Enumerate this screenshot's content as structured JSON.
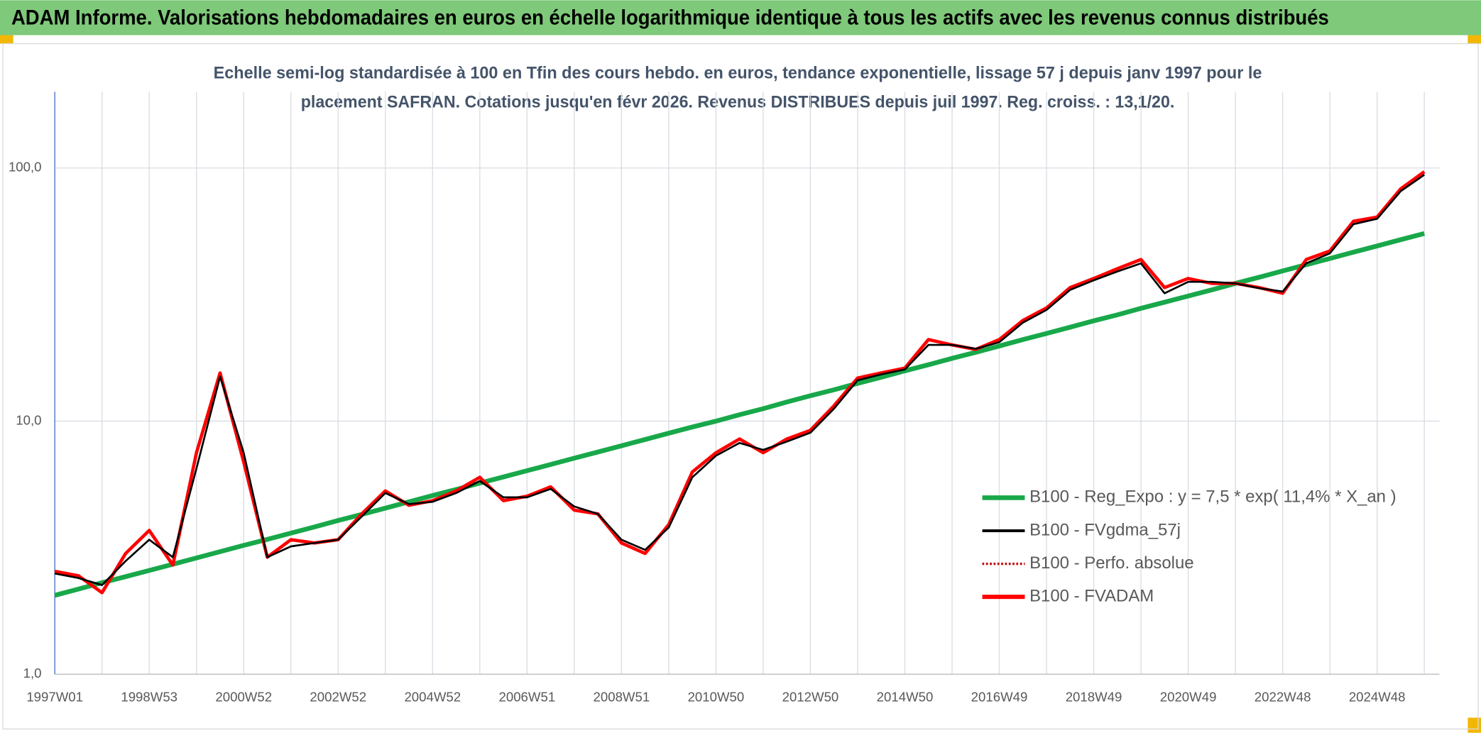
{
  "chart_data": {
    "type": "line",
    "title": "ADAM Informe. Valorisations hebdomadaires en euros en échelle logarithmique identique à tous les actifs avec les revenus connus distribués",
    "subtitle": [
      "Echelle semi-log standardisée à 100 en Tfin des cours hebdo. en euros, tendance exponentielle, lissage 57 j depuis janv 1997 pour le",
      "placement SAFRAN. Cotations jusqu'en févr 2026. Revenus DISTRIBUES depuis juil 1997. Reg. croiss. : 13,1/20."
    ],
    "categories": [
      "1997W01",
      null,
      null,
      null,
      "1998W53",
      null,
      null,
      null,
      "2000W52",
      null,
      null,
      null,
      "2002W52",
      null,
      null,
      null,
      "2004W52",
      null,
      null,
      null,
      "2006W51",
      null,
      null,
      null,
      "2008W51",
      null,
      null,
      null,
      "2010W50",
      null,
      null,
      null,
      "2012W50",
      null,
      null,
      null,
      "2014W50",
      null,
      null,
      null,
      "2016W49",
      null,
      null,
      null,
      "2018W49",
      null,
      null,
      null,
      "2020W49",
      null,
      null,
      null,
      "2022W48",
      null,
      null,
      null,
      "2024W48",
      null,
      null
    ],
    "log_scale": true,
    "grid": true,
    "ylim": [
      1,
      200
    ],
    "yticks": [
      {
        "value": 1,
        "label": "1,0"
      },
      {
        "value": 10,
        "label": "10,0"
      },
      {
        "value": 100,
        "label": "100,0"
      }
    ],
    "legend": "right",
    "series": [
      {
        "name": "B100 - Reg_Expo : y = 7,5 * exp( 11,4% *  X_an )",
        "color": "#18a84a",
        "style": "solid",
        "values": [
          2.05,
          2.17,
          2.3,
          2.43,
          2.57,
          2.72,
          2.88,
          3.05,
          3.23,
          3.41,
          3.61,
          3.82,
          4.05,
          4.28,
          4.53,
          4.8,
          5.08,
          5.37,
          5.69,
          6.02,
          6.37,
          6.74,
          7.14,
          7.55,
          7.99,
          8.46,
          8.96,
          9.48,
          10.0,
          10.6,
          11.2,
          11.9,
          12.6,
          13.3,
          14.1,
          14.9,
          15.8,
          16.7,
          17.7,
          18.7,
          19.8,
          21.0,
          22.2,
          23.5,
          24.9,
          26.3,
          27.9,
          29.5,
          31.2,
          33.0,
          35.0,
          37.0,
          39.2,
          41.5,
          43.9,
          46.5,
          49.2,
          52.1,
          55.1
        ]
      },
      {
        "name": "B100 - FVgdma_57j",
        "color": "#000000",
        "style": "solid",
        "values": [
          2.5,
          2.4,
          2.25,
          2.8,
          3.4,
          2.9,
          6.5,
          15,
          7.5,
          2.9,
          3.2,
          3.3,
          3.4,
          4.2,
          5.2,
          4.7,
          4.8,
          5.2,
          5.8,
          5.0,
          5.0,
          5.4,
          4.6,
          4.3,
          3.4,
          3.1,
          3.8,
          6.0,
          7.3,
          8.2,
          7.7,
          8.3,
          9.0,
          11.2,
          14.5,
          15.3,
          16.0,
          20,
          20,
          19.3,
          20.5,
          24.5,
          27.5,
          33,
          36,
          39,
          42,
          32,
          35.5,
          35.5,
          35,
          33.5,
          32.5,
          42,
          46,
          60,
          63,
          81,
          94
        ]
      },
      {
        "name": "B100 - Perfo. absolue",
        "color": "#c00000",
        "style": "dotted",
        "values": [
          2.55,
          2.45,
          2.1,
          3.0,
          3.7,
          2.7,
          7.5,
          15.5,
          6.9,
          2.9,
          3.4,
          3.3,
          3.4,
          4.3,
          5.3,
          4.65,
          4.85,
          5.3,
          6.0,
          4.85,
          5.05,
          5.5,
          4.45,
          4.3,
          3.3,
          3.0,
          3.9,
          6.3,
          7.5,
          8.5,
          7.5,
          8.5,
          9.2,
          11.5,
          14.8,
          15.5,
          16.2,
          21,
          20,
          19.2,
          21,
          25,
          28,
          33.7,
          36.6,
          40,
          43.5,
          33.7,
          36.6,
          35,
          35,
          33.7,
          32,
          43.5,
          47,
          61.6,
          64,
          82.7,
          96.7
        ]
      },
      {
        "name": "B100 - FVADAM",
        "color": "#ff0000",
        "style": "solid",
        "values": [
          2.55,
          2.45,
          2.1,
          3.0,
          3.7,
          2.7,
          7.5,
          15.5,
          6.9,
          2.9,
          3.4,
          3.3,
          3.4,
          4.3,
          5.3,
          4.65,
          4.85,
          5.3,
          6.0,
          4.85,
          5.05,
          5.5,
          4.45,
          4.3,
          3.3,
          3.0,
          3.9,
          6.3,
          7.5,
          8.5,
          7.5,
          8.5,
          9.2,
          11.5,
          14.8,
          15.5,
          16.2,
          21,
          20,
          19.2,
          21,
          25,
          28,
          33.7,
          36.6,
          40,
          43.5,
          33.7,
          36.6,
          35,
          35,
          33.7,
          32,
          43.5,
          47,
          61.6,
          64,
          82.7,
          96.7
        ]
      }
    ]
  }
}
